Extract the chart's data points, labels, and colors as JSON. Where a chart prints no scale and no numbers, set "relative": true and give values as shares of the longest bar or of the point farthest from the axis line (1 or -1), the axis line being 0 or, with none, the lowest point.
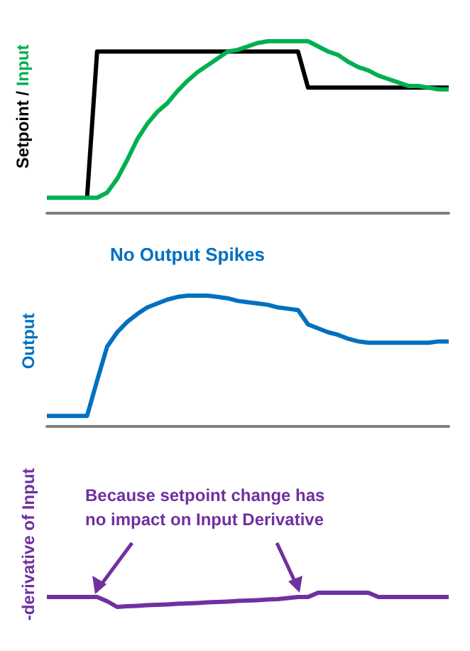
{
  "chart_data": [
    {
      "type": "line",
      "ylabel": "Setpoint / Input",
      "relative": true,
      "categories": [
        null,
        null,
        null,
        null,
        null,
        null,
        null,
        null,
        null,
        null,
        null,
        null,
        null,
        null,
        null,
        null,
        null,
        null,
        null,
        null,
        null,
        null,
        null,
        null,
        null,
        null,
        null,
        null,
        null,
        null,
        null,
        null,
        null,
        null,
        null,
        null,
        null,
        null,
        null,
        null,
        null
      ],
      "series": [
        {
          "color": "#000000",
          "values": [
            null,
            null,
            null,
            null,
            0.09,
            0.94,
            0.94,
            0.94,
            0.94,
            0.94,
            0.94,
            0.94,
            0.94,
            0.94,
            0.94,
            0.94,
            0.94,
            0.94,
            0.94,
            0.94,
            0.94,
            0.94,
            0.94,
            0.94,
            0.94,
            0.94,
            0.73,
            0.73,
            0.73,
            0.73,
            0.73,
            0.73,
            0.73,
            0.73,
            0.73,
            0.73,
            0.73,
            0.73,
            0.73,
            0.73,
            0.73
          ]
        },
        {
          "color": "#00b050",
          "values": [
            0.09,
            0.09,
            0.09,
            0.09,
            0.09,
            0.09,
            0.12,
            0.2,
            0.31,
            0.43,
            0.52,
            0.59,
            0.64,
            0.71,
            0.77,
            0.82,
            0.86,
            0.9,
            0.94,
            0.95,
            0.97,
            0.99,
            1,
            1,
            1,
            1,
            1,
            0.97,
            0.94,
            0.92,
            0.88,
            0.85,
            0.83,
            0.8,
            0.78,
            0.76,
            0.74,
            0.74,
            0.73,
            0.72,
            0.72
          ]
        }
      ]
    },
    {
      "type": "line",
      "title": "No Output Spikes",
      "ylabel": "Output",
      "relative": true,
      "categories": [
        null,
        null,
        null,
        null,
        null,
        null,
        null,
        null,
        null,
        null,
        null,
        null,
        null,
        null,
        null,
        null,
        null,
        null,
        null,
        null,
        null,
        null,
        null,
        null,
        null,
        null,
        null,
        null,
        null,
        null,
        null,
        null,
        null,
        null,
        null,
        null,
        null,
        null,
        null,
        null,
        null
      ],
      "series": [
        {
          "color": "#0070c0",
          "values": [
            0.08,
            0.08,
            0.08,
            0.08,
            0.08,
            0.35,
            0.61,
            0.72,
            0.8,
            0.86,
            0.91,
            0.94,
            0.97,
            0.99,
            1,
            1,
            1,
            0.99,
            0.98,
            0.96,
            0.95,
            0.94,
            0.93,
            0.91,
            0.9,
            0.89,
            0.78,
            0.75,
            0.72,
            0.7,
            0.67,
            0.65,
            0.64,
            0.64,
            0.64,
            0.64,
            0.64,
            0.64,
            0.64,
            0.65,
            0.65
          ]
        }
      ]
    },
    {
      "type": "line",
      "ylabel": "-derivative of Input",
      "relative": true,
      "annotations": [
        "Because setpoint change has no impact on Input Derivative"
      ],
      "categories": [
        null,
        null,
        null,
        null,
        null,
        null,
        null,
        null,
        null,
        null,
        null,
        null,
        null,
        null,
        null,
        null,
        null,
        null,
        null,
        null,
        null,
        null,
        null,
        null,
        null,
        null,
        null,
        null,
        null,
        null,
        null,
        null,
        null,
        null,
        null,
        null,
        null,
        null,
        null,
        null,
        null
      ],
      "series": [
        {
          "color": "#7030a0",
          "values": [
            0.7,
            0.7,
            0.7,
            0.7,
            0.7,
            0.7,
            0.4,
            0,
            0.05,
            0.08,
            0.12,
            0.15,
            0.18,
            0.22,
            0.25,
            0.28,
            0.32,
            0.35,
            0.38,
            0.42,
            0.45,
            0.48,
            0.52,
            0.55,
            0.62,
            0.7,
            0.7,
            1,
            1,
            1,
            1,
            1,
            1,
            0.7,
            0.7,
            0.7,
            0.7,
            0.7,
            0.7,
            0.7,
            0.7
          ]
        }
      ]
    }
  ]
}
